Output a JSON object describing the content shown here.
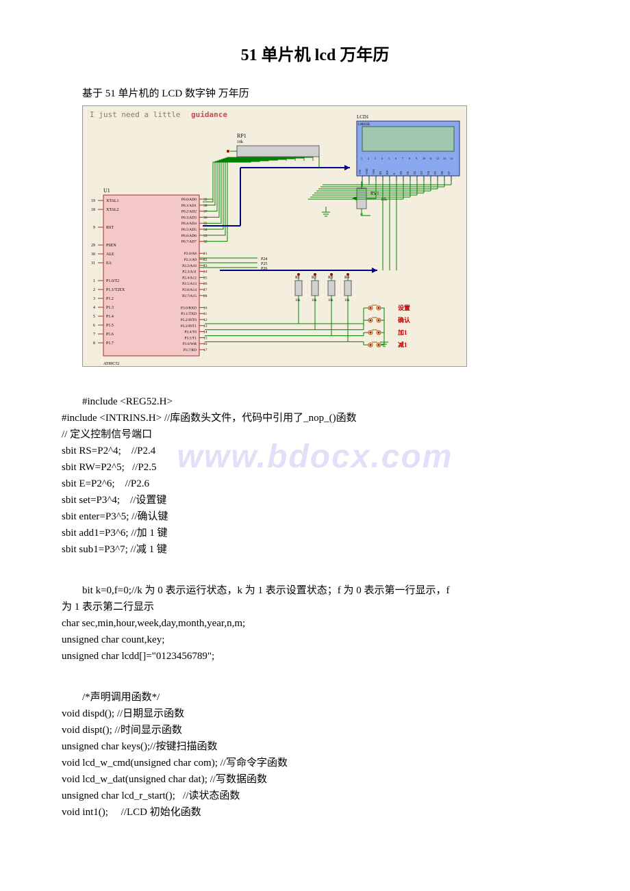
{
  "title": "51 单片机 lcd 万年历",
  "subtitle": "基于 51 单片机的 LCD 数字钟 万年历",
  "watermark": "www.bdocx.com",
  "diagram": {
    "header_text": "I just need a little guidance",
    "header_color": "#c05050",
    "header_bg": "#f5efe0",
    "grid_color": "#e8d8b8",
    "mcu": {
      "label": "U1",
      "model": "AT89C52",
      "fill": "#f5c8c8",
      "stroke": "#a03030",
      "left_pins": [
        {
          "num": "19",
          "name": "XTAL1"
        },
        {
          "num": "18",
          "name": "XTAL2"
        },
        {
          "num": "",
          "name": ""
        },
        {
          "num": "9",
          "name": "RST"
        },
        {
          "num": "",
          "name": ""
        },
        {
          "num": "29",
          "name": "PSEN"
        },
        {
          "num": "30",
          "name": "ALE"
        },
        {
          "num": "31",
          "name": "EA"
        },
        {
          "num": "",
          "name": ""
        },
        {
          "num": "1",
          "name": "P1.0/T2"
        },
        {
          "num": "2",
          "name": "P1.1/T2EX"
        },
        {
          "num": "3",
          "name": "P1.2"
        },
        {
          "num": "4",
          "name": "P1.3"
        },
        {
          "num": "5",
          "name": "P1.4"
        },
        {
          "num": "6",
          "name": "P1.5"
        },
        {
          "num": "7",
          "name": "P1.6"
        },
        {
          "num": "8",
          "name": "P1.7"
        }
      ],
      "right_pins": [
        {
          "num": "39",
          "name": "P0.0/AD0"
        },
        {
          "num": "38",
          "name": "P0.1/AD1"
        },
        {
          "num": "37",
          "name": "P0.2/AD2"
        },
        {
          "num": "36",
          "name": "P0.3/AD3"
        },
        {
          "num": "35",
          "name": "P0.4/AD4"
        },
        {
          "num": "34",
          "name": "P0.5/AD5"
        },
        {
          "num": "33",
          "name": "P0.6/AD6"
        },
        {
          "num": "32",
          "name": "P0.7/AD7"
        },
        {
          "num": "",
          "name": ""
        },
        {
          "num": "21",
          "name": "P2.0/A8"
        },
        {
          "num": "22",
          "name": "P2.1/A9"
        },
        {
          "num": "23",
          "name": "P2.2/A10"
        },
        {
          "num": "24",
          "name": "P2.3/A11"
        },
        {
          "num": "25",
          "name": "P2.4/A12"
        },
        {
          "num": "26",
          "name": "P2.5/A13"
        },
        {
          "num": "27",
          "name": "P2.6/A14"
        },
        {
          "num": "28",
          "name": "P2.7/A15"
        },
        {
          "num": "",
          "name": ""
        },
        {
          "num": "10",
          "name": "P3.0/RXD"
        },
        {
          "num": "11",
          "name": "P3.1/TXD"
        },
        {
          "num": "12",
          "name": "P3.2/INT0"
        },
        {
          "num": "13",
          "name": "P3.3/INT1"
        },
        {
          "num": "14",
          "name": "P3.4/T0"
        },
        {
          "num": "15",
          "name": "P3.5/T1"
        },
        {
          "num": "16",
          "name": "P3.6/WR"
        },
        {
          "num": "17",
          "name": "P3.7/RD"
        }
      ]
    },
    "resistor_pack": {
      "label": "RP1",
      "value": "10k",
      "fill": "#d0d0d0"
    },
    "lcd": {
      "label": "LCD1",
      "model": "LM016L",
      "fill": "#8aa8f0",
      "screen_fill": "#a0c8b0",
      "pins": [
        "VSS",
        "VDD",
        "VEE",
        "RS",
        "RW",
        "E",
        "D0",
        "D1",
        "D2",
        "D3",
        "D4",
        "D5",
        "D6",
        "D7"
      ]
    },
    "resistors": [
      {
        "label": "R1",
        "value": "10k"
      },
      {
        "label": "R2",
        "value": "10k"
      },
      {
        "label": "R3",
        "value": "10k"
      },
      {
        "label": "R4",
        "value": "10k"
      }
    ],
    "pot": {
      "label": "RV1",
      "value": "10k"
    },
    "buttons": [
      {
        "label": "设置",
        "color": "#c00000"
      },
      {
        "label": "确认",
        "color": "#c00000"
      },
      {
        "label": "加1",
        "color": "#c00000"
      },
      {
        "label": "减1",
        "color": "#c00000"
      }
    ],
    "bus_labels": [
      "P24",
      "P25",
      "P26"
    ],
    "wire_color": "#008000",
    "bus_color": "#000080"
  },
  "code": {
    "block1_indent": "#include <REG52.H>",
    "block1_lines": [
      "#include <INTRINS.H> //库函数头文件，代码中引用了_nop_()函数",
      "// 定义控制信号端口",
      "sbit RS=P2^4;    //P2.4",
      "sbit RW=P2^5;   //P2.5",
      "sbit E=P2^6;    //P2.6",
      "sbit set=P3^4;    //设置键",
      "sbit enter=P3^5; //确认键",
      "sbit add1=P3^6; //加 1 键",
      "sbit sub1=P3^7; //减 1 键"
    ],
    "block2_indent": "bit k=0,f=0;//k 为 0 表示运行状态，k 为 1 表示设置状态；f 为 0 表示第一行显示，f",
    "block2_lines": [
      "为 1 表示第二行显示",
      "char sec,min,hour,week,day,month,year,n,m;",
      "unsigned char count,key;",
      "unsigned char lcdd[]=\"0123456789\";"
    ],
    "block3_indent": "/*声明调用函数*/",
    "block3_lines": [
      "void dispd(); //日期显示函数",
      "void dispt(); //时间显示函数",
      "unsigned char keys();//按键扫描函数",
      "void lcd_w_cmd(unsigned char com); //写命令字函数",
      "void lcd_w_dat(unsigned char dat); //写数据函数",
      "unsigned char lcd_r_start();   //读状态函数",
      "void int1();     //LCD 初始化函数"
    ]
  }
}
